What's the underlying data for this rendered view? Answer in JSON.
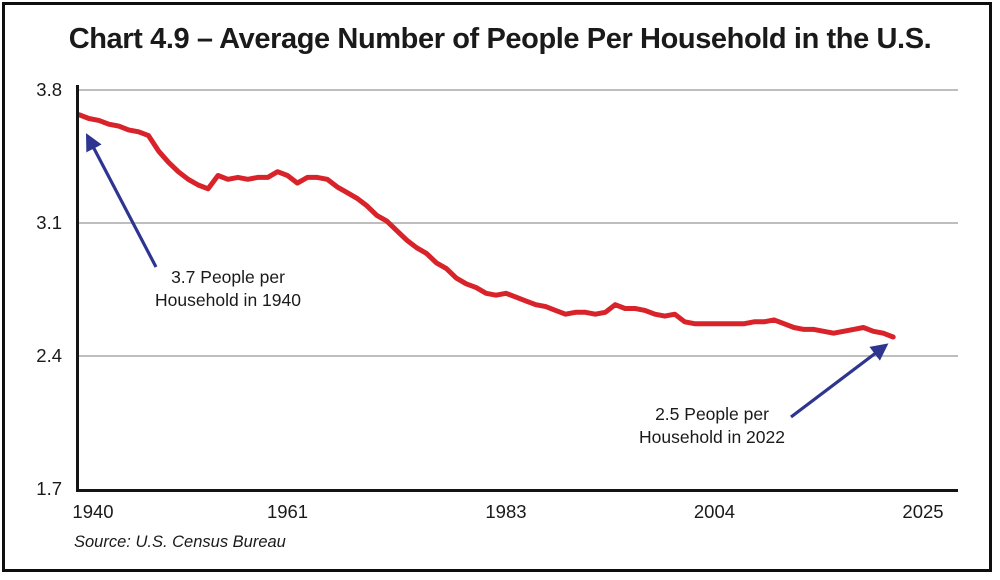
{
  "colors": {
    "line": "#d8232a",
    "arrow": "#2d3590",
    "grid": "#b5b5b5",
    "axis": "#141414",
    "text": "#1a1a1a",
    "frame": "#0e0e0e"
  },
  "chart_data": {
    "type": "line",
    "title": "Chart 4.9 – Average Number of People Per Household in the U.S.",
    "source": "Source: U.S. Census Bureau",
    "xlabel": "",
    "ylabel": "",
    "xlim": [
      1940,
      2025
    ],
    "ylim": [
      1.7,
      3.8
    ],
    "x_tick_labels": [
      "1940",
      "1961",
      "1983",
      "2004",
      "2025"
    ],
    "x_tick_years": [
      1940,
      1961,
      1983,
      2004,
      2025
    ],
    "y_tick_labels": [
      "3.8",
      "3.1",
      "2.4",
      "1.7"
    ],
    "y_tick_values": [
      3.8,
      3.1,
      2.4,
      1.7
    ],
    "gridline_values": [
      3.8,
      3.1,
      2.4
    ],
    "grid": "horizontal-only",
    "legend": "none",
    "line_color": "#d8232a",
    "series": [
      {
        "name": "Average people per household",
        "x": [
          1940,
          1941,
          1942,
          1943,
          1944,
          1945,
          1946,
          1947,
          1948,
          1949,
          1950,
          1951,
          1952,
          1953,
          1954,
          1955,
          1956,
          1957,
          1958,
          1959,
          1960,
          1961,
          1962,
          1963,
          1964,
          1965,
          1966,
          1967,
          1968,
          1969,
          1970,
          1971,
          1972,
          1973,
          1974,
          1975,
          1976,
          1977,
          1978,
          1979,
          1980,
          1981,
          1982,
          1983,
          1984,
          1985,
          1986,
          1987,
          1988,
          1989,
          1990,
          1991,
          1992,
          1993,
          1994,
          1995,
          1996,
          1997,
          1998,
          1999,
          2000,
          2001,
          2002,
          2003,
          2004,
          2005,
          2006,
          2007,
          2008,
          2009,
          2010,
          2011,
          2012,
          2013,
          2014,
          2015,
          2016,
          2017,
          2018,
          2019,
          2020,
          2021,
          2022
        ],
        "values": [
          3.67,
          3.65,
          3.64,
          3.62,
          3.61,
          3.59,
          3.58,
          3.56,
          3.48,
          3.42,
          3.37,
          3.33,
          3.3,
          3.28,
          3.35,
          3.33,
          3.34,
          3.33,
          3.34,
          3.34,
          3.37,
          3.35,
          3.31,
          3.34,
          3.34,
          3.33,
          3.29,
          3.26,
          3.23,
          3.19,
          3.14,
          3.11,
          3.06,
          3.01,
          2.97,
          2.94,
          2.89,
          2.86,
          2.81,
          2.78,
          2.76,
          2.73,
          2.72,
          2.73,
          2.71,
          2.69,
          2.67,
          2.66,
          2.64,
          2.62,
          2.63,
          2.63,
          2.62,
          2.63,
          2.67,
          2.65,
          2.65,
          2.64,
          2.62,
          2.61,
          2.62,
          2.58,
          2.57,
          2.57,
          2.57,
          2.57,
          2.57,
          2.57,
          2.58,
          2.58,
          2.59,
          2.57,
          2.55,
          2.54,
          2.54,
          2.53,
          2.52,
          2.53,
          2.54,
          2.55,
          2.53,
          2.52,
          2.5
        ]
      }
    ],
    "annotations": [
      {
        "line1": "3.7 People per",
        "line2": "Household in 1940",
        "target_year": 1940,
        "target_value": 3.7
      },
      {
        "line1": "2.5 People per",
        "line2": "Household in 2022",
        "target_year": 2022,
        "target_value": 2.5
      }
    ]
  }
}
